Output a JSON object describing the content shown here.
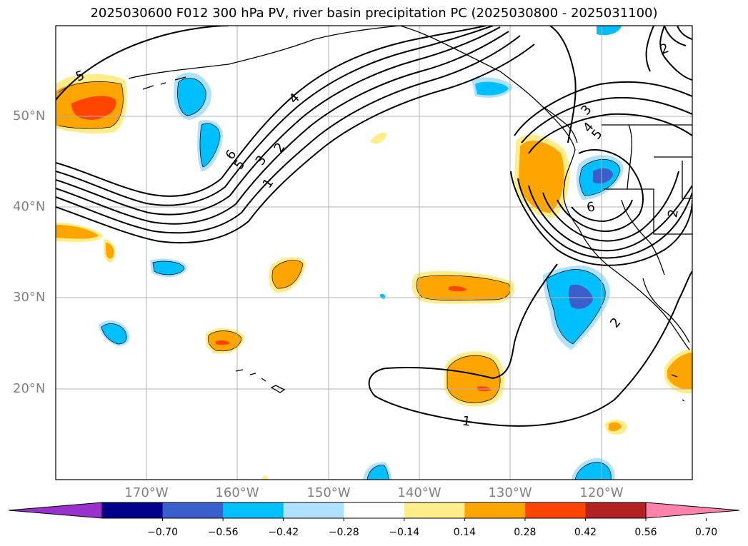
{
  "title": "2025030600 F012 300 hPa PV, river basin precipitation PC (2025030800 - 2025031100)",
  "map": {
    "lat_labels": [
      "50°N",
      "40°N",
      "30°N",
      "20°N"
    ],
    "lon_labels": [
      "170°W",
      "160°W",
      "150°W",
      "140°W",
      "130°W",
      "120°W"
    ],
    "extent": {
      "lon_min": -180,
      "lon_max": -110,
      "lat_min": 10,
      "lat_max": 60
    },
    "contour_labels": [
      "5",
      "6",
      "5",
      "3",
      "2",
      "4",
      "1",
      "3",
      "4",
      "5",
      "6",
      "2",
      "2",
      "1",
      "2"
    ]
  },
  "colorbar": {
    "ticks": [
      "−0.70",
      "−0.56",
      "−0.42",
      "−0.28",
      "−0.14",
      "0.14",
      "0.28",
      "0.42",
      "0.56",
      "0.70"
    ],
    "colors": [
      "#9932cc",
      "#00008b",
      "#3a5fcd",
      "#00bfff",
      "#b0e2ff",
      "#ffffff",
      "#ffec8b",
      "#ffa500",
      "#ff4500",
      "#b22222",
      "#ff82ab"
    ]
  }
}
